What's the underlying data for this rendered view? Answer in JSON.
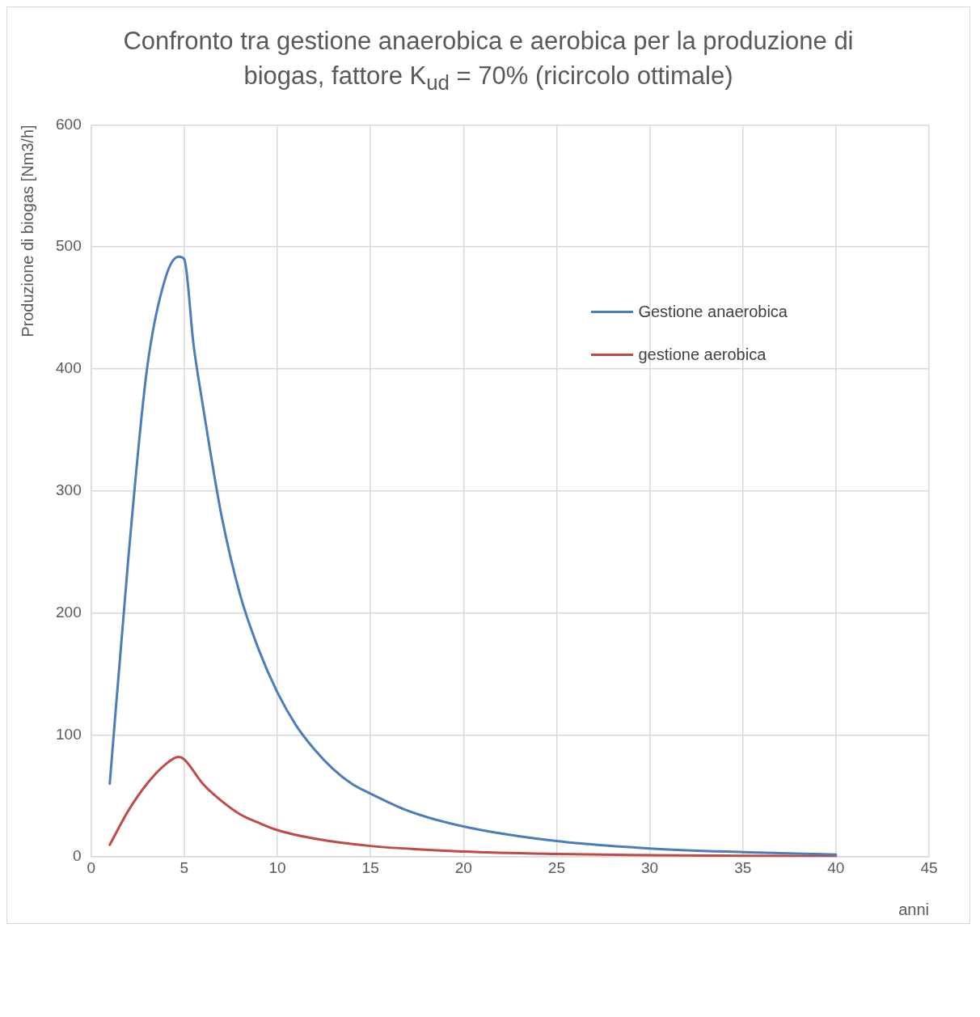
{
  "chart_data": {
    "type": "line",
    "title": "Confronto tra gestione anaerobica e aerobica per la produzione di biogas, fattore K$_{ud}$ = 70% (ricircolo ottimale)",
    "xlabel": "anni",
    "ylabel": "Produzione di biogas [Nm3/h]",
    "xlim": [
      0,
      45
    ],
    "xticks": [
      0,
      5,
      10,
      15,
      20,
      25,
      30,
      35,
      40,
      45
    ],
    "ylim": [
      0,
      600
    ],
    "yticks": [
      0,
      100,
      200,
      300,
      400,
      500,
      600
    ],
    "grid": true,
    "legend": "top right",
    "marker": "none",
    "line_style": "solid",
    "series": [
      {
        "name": "Gestione anaerobica",
        "color": "#4a7ebb",
        "x": [
          1,
          2,
          3,
          4,
          4.7,
          5,
          5.5,
          6,
          7,
          8,
          9,
          10,
          11,
          12,
          13,
          14,
          15,
          17,
          20,
          25,
          30,
          35,
          40
        ],
        "values": [
          60,
          245,
          400,
          475,
          492,
          490,
          420,
          370,
          280,
          215,
          170,
          135,
          108,
          88,
          72,
          60,
          52,
          38,
          25,
          13,
          7,
          4,
          2
        ]
      },
      {
        "name": "gestione aerobica",
        "color": "#be4b48",
        "x": [
          1,
          2,
          3,
          4,
          4.7,
          5,
          6,
          7,
          8,
          9,
          10,
          12,
          15,
          20,
          25,
          30,
          35,
          40
        ],
        "values": [
          10,
          38,
          60,
          76,
          82,
          80,
          60,
          46,
          35,
          28,
          22,
          15,
          9,
          4.5,
          2.5,
          1.5,
          1,
          0.5
        ]
      }
    ]
  }
}
